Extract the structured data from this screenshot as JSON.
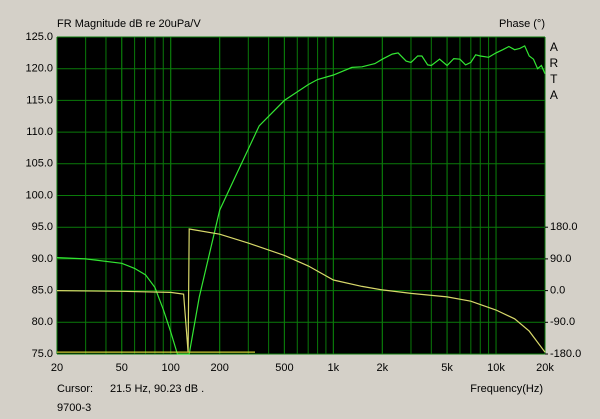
{
  "chart_data": {
    "type": "line",
    "title": "FR Magnitude dB re 20uPa/V",
    "y2_title": "Phase (°)",
    "side_label": "ARTA",
    "x_label": "Frequency(Hz)",
    "cursor_label": "Cursor:",
    "cursor_value": "21.5 Hz, 90.23 dB .",
    "footer": "9700-3",
    "log_x": true,
    "grid": true,
    "xlim": [
      20,
      20000
    ],
    "xticks": [
      20,
      50,
      100,
      200,
      500,
      {
        "value": 1000,
        "label": "1k"
      },
      {
        "value": 2000,
        "label": "2k"
      },
      {
        "value": 5000,
        "label": "5k"
      },
      {
        "value": 10000,
        "label": "10k"
      },
      {
        "value": 20000,
        "label": "20k"
      }
    ],
    "ylim": [
      75,
      125
    ],
    "yticks": [
      {
        "value": 75,
        "label": "75.0"
      },
      {
        "value": 80,
        "label": "80.0"
      },
      {
        "value": 85,
        "label": "85.0"
      },
      {
        "value": 90,
        "label": "90.0"
      },
      {
        "value": 95,
        "label": "95.0"
      },
      {
        "value": 100,
        "label": "100.0"
      },
      {
        "value": 105,
        "label": "105.0"
      },
      {
        "value": 110,
        "label": "110.0"
      },
      {
        "value": 115,
        "label": "115.0"
      },
      {
        "value": 120,
        "label": "120.0"
      },
      {
        "value": 125,
        "label": "125.0"
      }
    ],
    "y2lim": [
      -180,
      720
    ],
    "y2ticks": [
      {
        "value": -180,
        "label": "-180.0"
      },
      {
        "value": -90,
        "label": "-90.0"
      },
      {
        "value": 0,
        "label": "0.0"
      },
      {
        "value": 90,
        "label": "90.0"
      },
      {
        "value": 180,
        "label": "180.0"
      }
    ],
    "series": [
      {
        "name": "Magnitude",
        "color": "#33e633",
        "x": [
          20,
          30,
          50,
          60,
          70,
          80,
          90,
          100,
          110,
          130,
          150,
          200,
          250,
          350,
          500,
          700,
          800,
          1000,
          1300,
          1500,
          1800,
          2000,
          2300,
          2500,
          2800,
          3000,
          3300,
          3500,
          3800,
          4000,
          4500,
          5000,
          5500,
          6000,
          6500,
          7000,
          7500,
          8000,
          9000,
          10000,
          11000,
          12000,
          13000,
          14000,
          15000,
          16000,
          17000,
          18000,
          19000,
          20000
        ],
        "values": [
          90.2,
          90.0,
          89.3,
          88.5,
          87.5,
          85.5,
          82,
          78.5,
          75,
          75,
          84,
          97.7,
          103,
          111,
          115,
          117.5,
          118.3,
          119,
          120.2,
          120.3,
          120.8,
          121.5,
          122.3,
          122.5,
          121.2,
          121,
          122,
          122,
          120.6,
          120.5,
          121.5,
          120.5,
          121.6,
          121.5,
          120.6,
          121,
          122.2,
          122,
          121.8,
          122.5,
          123,
          123.5,
          123,
          123.2,
          123.6,
          122,
          121.5,
          120,
          120.5,
          119.2
        ]
      },
      {
        "name": "Phase",
        "color": "#d8d86a",
        "axis": "y2",
        "x": [
          20,
          50,
          100,
          120,
          128,
          130,
          200,
          300,
          500,
          700,
          1000,
          1500,
          2000,
          3000,
          5000,
          7000,
          10000,
          13000,
          16000,
          20000
        ],
        "values": [
          0,
          -2,
          -5,
          -10,
          -175,
          175,
          160,
          135,
          100,
          70,
          30,
          12,
          2,
          -8,
          -18,
          -30,
          -55,
          -80,
          -115,
          -175
        ]
      },
      {
        "color": "#cccc33",
        "x": [
          20,
          330
        ],
        "values": [
          75.3,
          75.3
        ]
      }
    ]
  }
}
